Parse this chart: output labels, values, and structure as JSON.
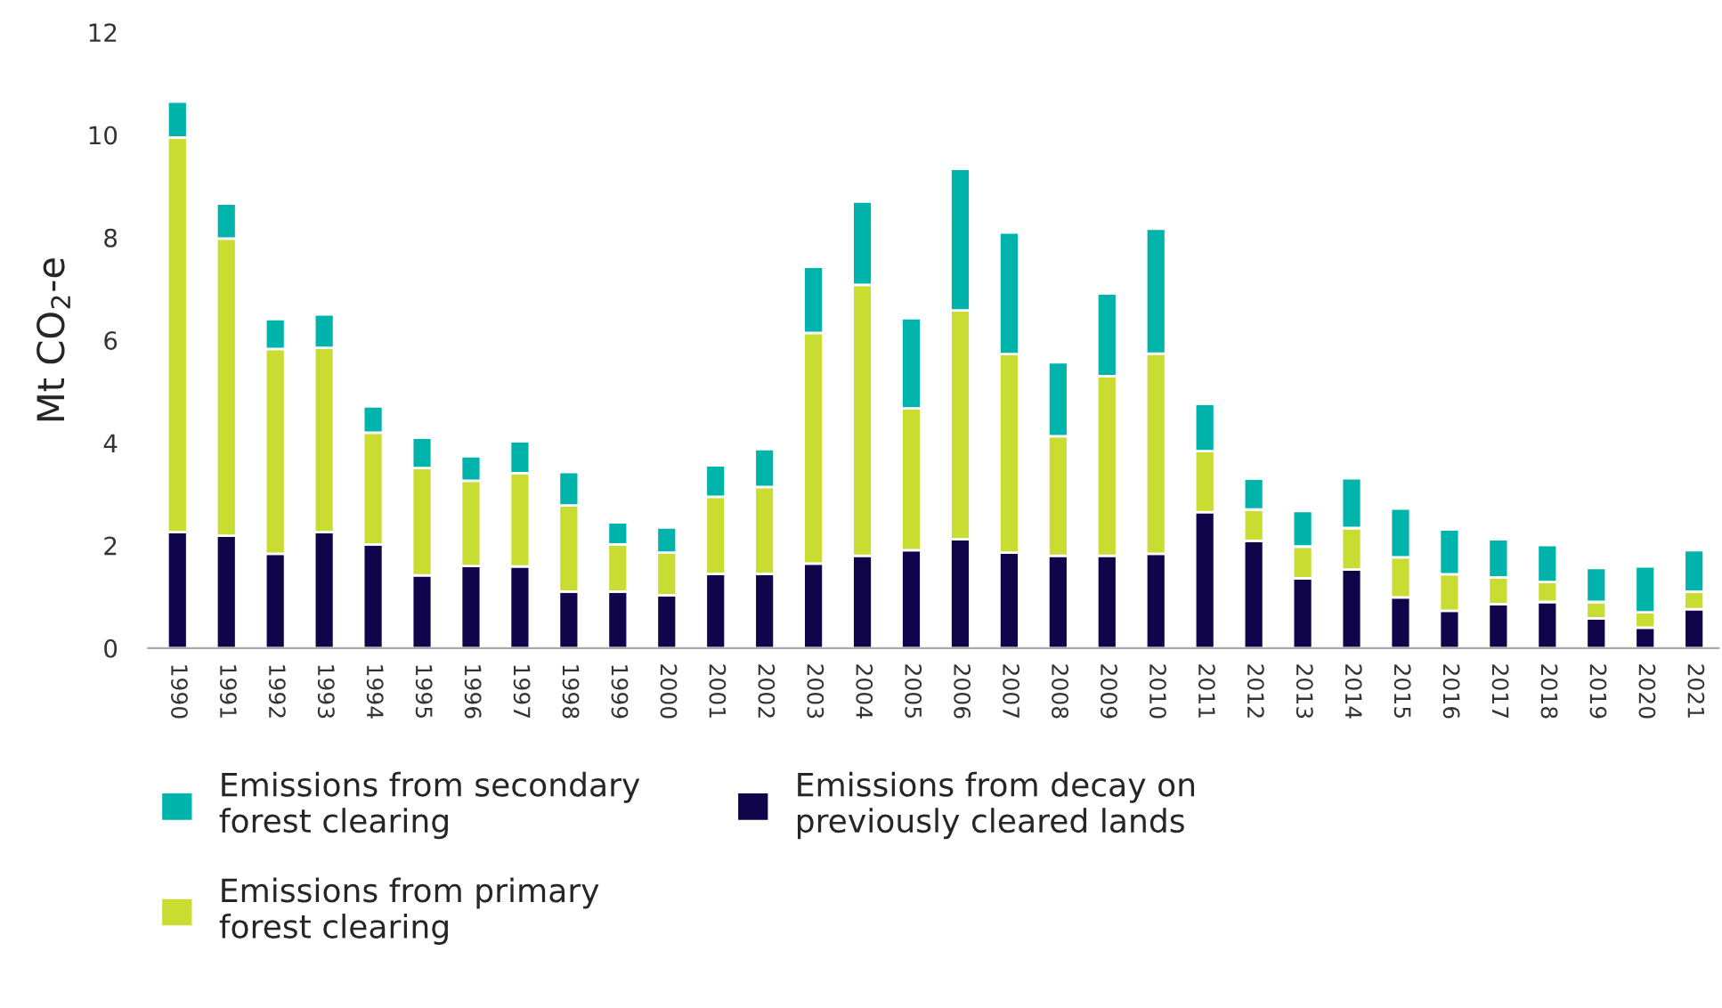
{
  "chart_data": {
    "type": "bar",
    "stacked": true,
    "ylabel": "Mt CO$_{2}$-e",
    "categories": [
      "1990",
      "1991",
      "1992",
      "1993",
      "1994",
      "1995",
      "1996",
      "1997",
      "1998",
      "1999",
      "2000",
      "2001",
      "2002",
      "2003",
      "2004",
      "2005",
      "2006",
      "2007",
      "2008",
      "2009",
      "2010",
      "2011",
      "2012",
      "2013",
      "2014",
      "2015",
      "2016",
      "2017",
      "2018",
      "2019",
      "2020",
      "2021"
    ],
    "series": [
      {
        "name": "Emissions from decay on\npreviously cleared lands",
        "color": "#10054a",
        "values": [
          2.26,
          2.19,
          1.84,
          2.26,
          2.02,
          1.42,
          1.6,
          1.59,
          1.1,
          1.1,
          1.03,
          1.45,
          1.45,
          1.65,
          1.8,
          1.91,
          2.12,
          1.86,
          1.8,
          1.8,
          1.84,
          2.65,
          2.09,
          1.36,
          1.53,
          0.99,
          0.73,
          0.86,
          0.9,
          0.58,
          0.4,
          0.76
        ]
      },
      {
        "name": "Emissions from primary\nforest clearing",
        "color": "#c8dc32",
        "values": [
          7.69,
          5.79,
          3.99,
          3.59,
          2.18,
          2.09,
          1.66,
          1.82,
          1.68,
          0.92,
          0.83,
          1.5,
          1.69,
          4.49,
          5.28,
          2.76,
          4.46,
          3.87,
          2.33,
          3.5,
          3.9,
          1.19,
          0.61,
          0.62,
          0.81,
          0.78,
          0.71,
          0.52,
          0.39,
          0.32,
          0.3,
          0.34
        ]
      },
      {
        "name": "Emissions from secondary\nforest clearing",
        "color": "#00b4ac",
        "values": [
          0.7,
          0.68,
          0.58,
          0.65,
          0.51,
          0.59,
          0.48,
          0.62,
          0.65,
          0.43,
          0.49,
          0.61,
          0.74,
          1.29,
          1.62,
          1.76,
          2.76,
          2.37,
          1.44,
          1.61,
          2.43,
          0.92,
          0.6,
          0.69,
          0.97,
          0.95,
          0.87,
          0.74,
          0.72,
          0.66,
          0.89,
          0.81
        ]
      }
    ],
    "ylim": [
      0,
      12
    ],
    "yticks": [
      0,
      2,
      4,
      6,
      8,
      10,
      12
    ],
    "grid": false,
    "legend": "bottom"
  }
}
